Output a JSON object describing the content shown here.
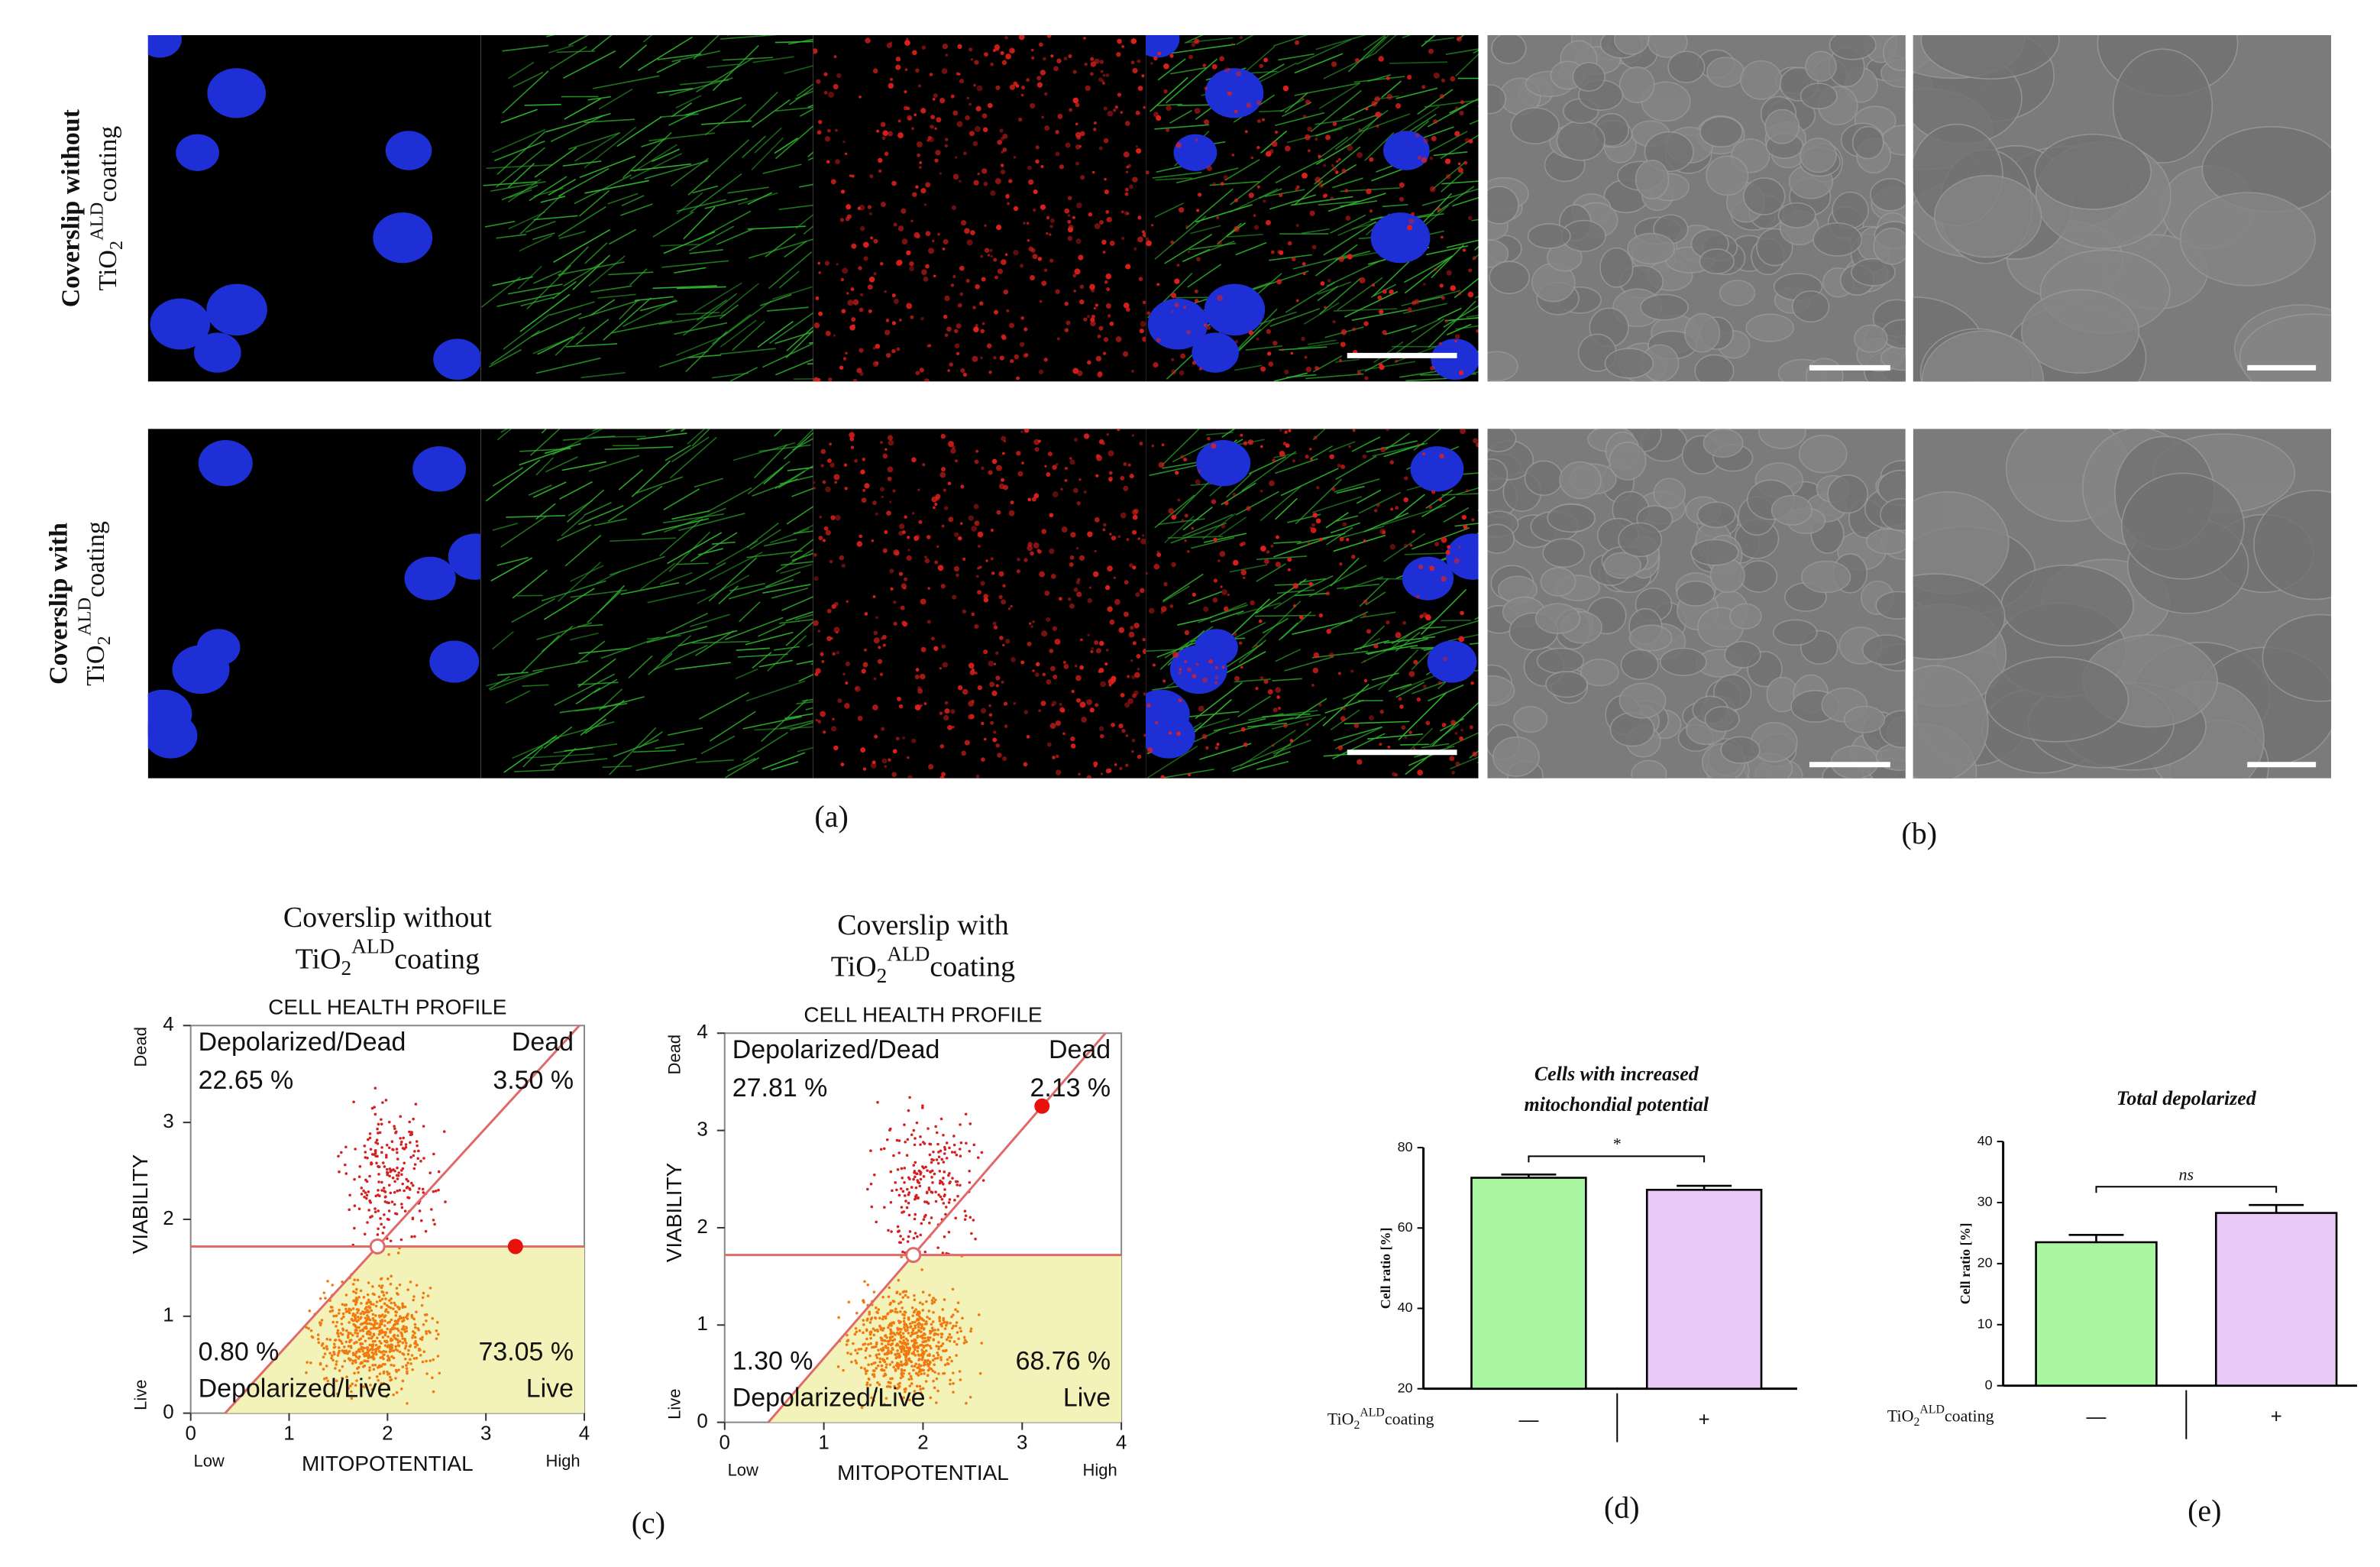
{
  "figure": {
    "rows": [
      {
        "label": "Coverslip  without",
        "chem": {
          "base": "TiO",
          "sub": "2",
          "sup": "ALD",
          "rest": "coating"
        }
      },
      {
        "label": "Coverslip  with",
        "chem": {
          "base": "TiO",
          "sub": "2",
          "sup": "ALD",
          "rest": "coating"
        }
      }
    ],
    "panel_labels": {
      "a": "(a)",
      "b": "(b)",
      "c": "(c)",
      "d": "(d)",
      "e": "(e)"
    }
  },
  "chart_data": [
    {
      "type": "quadrant",
      "title": "Coverslip  without",
      "title_chem": {
        "base": "TiO",
        "sub": "2",
        "sup": "ALD",
        "rest": "coating"
      },
      "subtitle": "CELL HEALTH PROFILE",
      "xlabel": "MITOPOTENTIAL",
      "ylabel": "VIABILITY",
      "x_low": "Low",
      "x_high": "High",
      "y_low": "Live",
      "y_high": "Dead",
      "categories": [
        "Depolarized/Dead",
        "Dead",
        "Depolarized/Live",
        "Live"
      ],
      "values": [
        22.65,
        3.5,
        0.8,
        73.05
      ],
      "value_labels": [
        "22.65 %",
        "3.50 %",
        "0.80 %",
        "73.05 %"
      ],
      "xlim": [
        0,
        4
      ],
      "ylim": [
        0,
        4
      ],
      "xticks": [
        0,
        1,
        2,
        3,
        4
      ],
      "yticks": [
        0,
        1,
        2,
        3,
        4
      ],
      "gate_y": 1.72,
      "diagonal": [
        [
          0.35,
          0
        ],
        [
          3.95,
          4
        ]
      ],
      "marker": {
        "x": 3.3,
        "y": 1.72
      }
    },
    {
      "type": "quadrant",
      "title": "Coverslip  with",
      "title_chem": {
        "base": "TiO",
        "sub": "2",
        "sup": "ALD",
        "rest": "coating"
      },
      "subtitle": "CELL  HEALTH  PROFILE",
      "xlabel": "MITOPOTENTIAL",
      "ylabel": "VIABILITY",
      "x_low": "Low",
      "x_high": "High",
      "y_low": "Live",
      "y_high": "Dead",
      "categories": [
        "Depolarized/Dead",
        "Dead",
        "Depolarized/Live",
        "Live"
      ],
      "values": [
        27.81,
        2.13,
        1.3,
        68.76
      ],
      "value_labels": [
        "27.81 %",
        "2.13 %",
        "1.30 %",
        "68.76 %"
      ],
      "xlim": [
        0,
        4
      ],
      "ylim": [
        0,
        4
      ],
      "xticks": [
        0,
        1,
        2,
        3,
        4
      ],
      "yticks": [
        0,
        1,
        2,
        3,
        4
      ],
      "gate_y": 1.72,
      "diagonal": [
        [
          0.44,
          0
        ],
        [
          3.84,
          4
        ]
      ],
      "marker": {
        "x": 3.2,
        "y": 3.25
      }
    },
    {
      "type": "bar",
      "title": [
        "Cells with increased",
        "mitochondial potential"
      ],
      "ylabel": "Cell ratio [%]",
      "x_label": {
        "base": "TiO",
        "sub": "2",
        "sup": "ALD",
        "rest": "coating"
      },
      "categories": [
        "—",
        "+"
      ],
      "values": [
        72.5,
        69.5
      ],
      "errors": [
        0.8,
        1.0
      ],
      "colors": [
        "#a8f5a2",
        "#e9c9f5"
      ],
      "ylim": [
        20,
        80
      ],
      "yticks": [
        20,
        40,
        60,
        80
      ],
      "significance": "*"
    },
    {
      "type": "bar",
      "title": [
        "Total depolarized"
      ],
      "ylabel": "Cell ratio [%]",
      "x_label": {
        "base": "TiO",
        "sub": "2",
        "sup": "ALD",
        "rest": "coating"
      },
      "categories": [
        "—",
        "+"
      ],
      "values": [
        23.5,
        28.3
      ],
      "errors": [
        1.2,
        1.3
      ],
      "colors": [
        "#a8f5a2",
        "#e9c9f5"
      ],
      "ylim": [
        0,
        40
      ],
      "yticks": [
        0,
        10,
        20,
        30,
        40
      ],
      "significance": "ns"
    }
  ]
}
